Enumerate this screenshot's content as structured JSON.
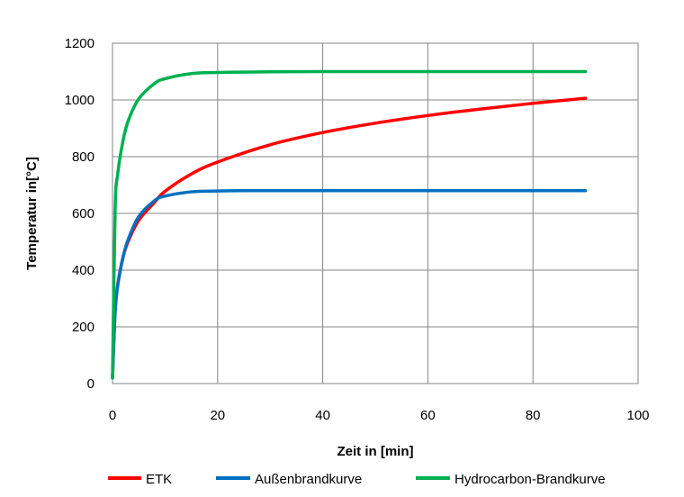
{
  "chart_data": {
    "type": "line",
    "title": "",
    "xlabel": "Zeit in [min]",
    "ylabel": "Temperatur in[°C]",
    "xlim": [
      0,
      100
    ],
    "ylim": [
      0,
      1200
    ],
    "xticks": [
      0,
      20,
      40,
      60,
      80,
      100
    ],
    "yticks": [
      0,
      200,
      400,
      600,
      800,
      1000,
      1200
    ],
    "grid": true,
    "legend_position": "bottom",
    "series": [
      {
        "name": "ETK",
        "color": "#ff0000",
        "x": [
          0,
          0.5,
          1,
          2,
          3,
          5,
          8,
          10,
          15,
          20,
          30,
          40,
          50,
          60,
          70,
          80,
          90
        ],
        "y": [
          20,
          261,
          349,
          445,
          502,
          576,
          639,
          678,
          739,
          781,
          842,
          885,
          918,
          945,
          968,
          988,
          1006
        ]
      },
      {
        "name": "Außenbrandkurve",
        "color": "#0070c0",
        "x": [
          0,
          0.5,
          1,
          2,
          3,
          5,
          8,
          10,
          15,
          20,
          25,
          30,
          40,
          50,
          60,
          70,
          80,
          90
        ],
        "y": [
          20,
          250,
          346,
          445,
          509,
          589,
          645,
          661,
          676,
          679,
          680,
          680,
          680,
          680,
          680,
          680,
          680,
          680
        ]
      },
      {
        "name": "Hydrocarbon-Brandkurve",
        "color": "#00b050",
        "x": [
          0,
          0.5,
          1,
          2,
          3,
          5,
          8,
          10,
          15,
          20,
          30,
          40,
          50,
          60,
          70,
          80,
          90
        ],
        "y": [
          20,
          612,
          740,
          856,
          927,
          1004,
          1058,
          1075,
          1093,
          1097,
          1099,
          1100,
          1100,
          1100,
          1100,
          1100,
          1100
        ]
      }
    ]
  }
}
